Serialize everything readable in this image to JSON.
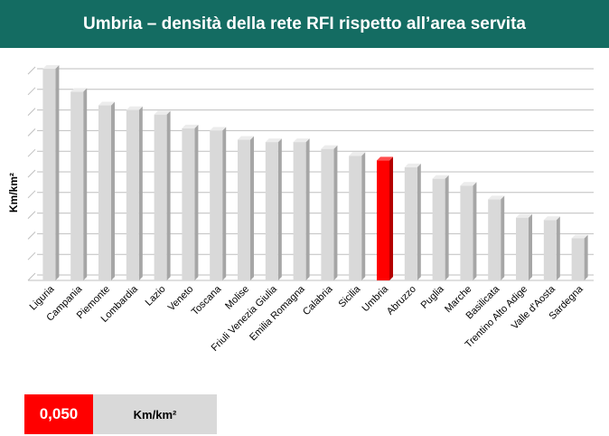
{
  "slide": {
    "title": "Umbria – densità della rete RFI rispetto all’area servita"
  },
  "callout": {
    "value": "0,050",
    "unit": "Km/km²",
    "color": "#ff0000"
  },
  "colors": {
    "header_bg": "#146c62",
    "bar_default": "#d9d9d9",
    "bar_highlight": "#ff0000"
  },
  "chart_data": {
    "type": "bar",
    "title": "",
    "ylabel": "Km/km²",
    "xlabel": "",
    "ylim": [
      0,
      0.09
    ],
    "grid": true,
    "y_tick_labels_shown": false,
    "highlight_category": "Umbria",
    "categories": [
      "Liguria",
      "Campania",
      "Piemonte",
      "Lombardia",
      "Lazio",
      "Veneto",
      "Toscana",
      "Molise",
      "Friuli Venezia Giulia",
      "Emilia Romagna",
      "Calabria",
      "Sicilia",
      "Umbria",
      "Abruzzo",
      "Puglia",
      "Marche",
      "Basilicata",
      "Trentino Alto Adige",
      "Valle d'Aosta",
      "Sardegna"
    ],
    "values": [
      0.09,
      0.08,
      0.074,
      0.072,
      0.07,
      0.064,
      0.063,
      0.059,
      0.058,
      0.058,
      0.055,
      0.052,
      0.05,
      0.047,
      0.042,
      0.039,
      0.033,
      0.025,
      0.024,
      0.016
    ]
  }
}
